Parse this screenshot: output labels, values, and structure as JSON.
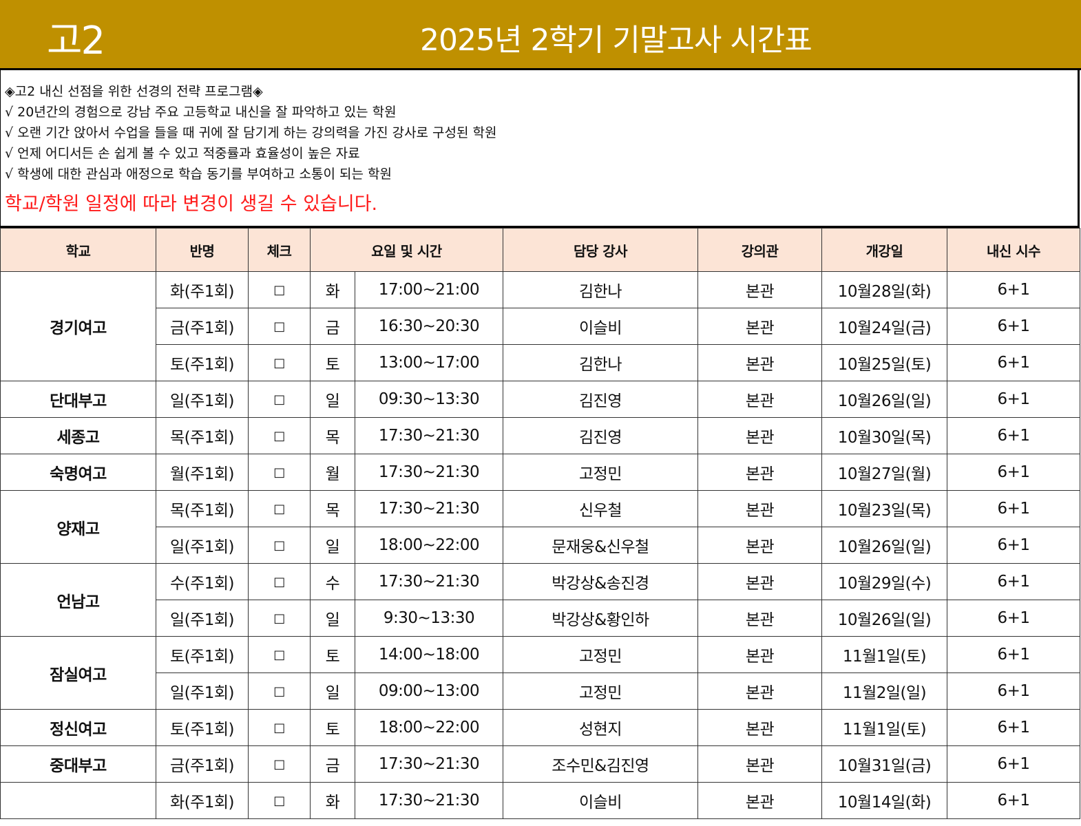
{
  "header": {
    "grade": "고2",
    "title": "2025년 2학기 기말고사 시간표",
    "bg_color": "#BF9000"
  },
  "intro": {
    "lines": [
      "◈고2 내신 선점을 위한 선경의 전략 프로그램◈",
      "√ 20년간의 경험으로 강남 주요 고등학교 내신을 잘 파악하고 있는 학원",
      "√ 오랜 기간 앉아서 수업을 들을 때 귀에 잘 담기게 하는 강의력을 가진 강사로 구성된 학원",
      "√ 언제 어디서든 손 쉽게 볼 수 있고 적중률과 효율성이 높은 자료",
      "√ 학생에 대한 관심과 애정으로 학습 동기를 부여하고 소통이 되는 학원"
    ],
    "notice": "학교/학원 일정에 따라 변경이 생길 수 있습니다."
  },
  "table": {
    "headers": [
      "학교",
      "반명",
      "체크",
      "요일 및 시간",
      "담당 강사",
      "강의관",
      "개강일",
      "내신 시수"
    ],
    "header_color": "#FCE4D6",
    "schools": [
      {
        "name": "경기여고",
        "rows": [
          {
            "class": "화(주1회)",
            "check": "□",
            "day": "화",
            "time": "17:00~21:00",
            "teacher": "김한나",
            "hall": "본관",
            "start": "10월28일(화)",
            "hours": "6+1"
          },
          {
            "class": "금(주1회)",
            "check": "□",
            "day": "금",
            "time": "16:30~20:30",
            "teacher": "이슬비",
            "hall": "본관",
            "start": "10월24일(금)",
            "hours": "6+1"
          },
          {
            "class": "토(주1회)",
            "check": "□",
            "day": "토",
            "time": "13:00~17:00",
            "teacher": "김한나",
            "hall": "본관",
            "start": "10월25일(토)",
            "hours": "6+1"
          }
        ]
      },
      {
        "name": "단대부고",
        "rows": [
          {
            "class": "일(주1회)",
            "check": "□",
            "day": "일",
            "time": "09:30~13:30",
            "teacher": "김진영",
            "hall": "본관",
            "start": "10월26일(일)",
            "hours": "6+1"
          }
        ]
      },
      {
        "name": "세종고",
        "rows": [
          {
            "class": "목(주1회)",
            "check": "□",
            "day": "목",
            "time": "17:30~21:30",
            "teacher": "김진영",
            "hall": "본관",
            "start": "10월30일(목)",
            "hours": "6+1"
          }
        ]
      },
      {
        "name": "숙명여고",
        "rows": [
          {
            "class": "월(주1회)",
            "check": "□",
            "day": "월",
            "time": "17:30~21:30",
            "teacher": "고정민",
            "hall": "본관",
            "start": "10월27일(월)",
            "hours": "6+1"
          }
        ]
      },
      {
        "name": "양재고",
        "rows": [
          {
            "class": "목(주1회)",
            "check": "□",
            "day": "목",
            "time": "17:30~21:30",
            "teacher": "신우철",
            "hall": "본관",
            "start": "10월23일(목)",
            "hours": "6+1"
          },
          {
            "class": "일(주1회)",
            "check": "□",
            "day": "일",
            "time": "18:00~22:00",
            "teacher": "문재웅&신우철",
            "hall": "본관",
            "start": "10월26일(일)",
            "hours": "6+1"
          }
        ]
      },
      {
        "name": "언남고",
        "rows": [
          {
            "class": "수(주1회)",
            "check": "□",
            "day": "수",
            "time": "17:30~21:30",
            "teacher": "박강상&송진경",
            "hall": "본관",
            "start": "10월29일(수)",
            "hours": "6+1"
          },
          {
            "class": "일(주1회)",
            "check": "□",
            "day": "일",
            "time": "9:30~13:30",
            "teacher": "박강상&황인하",
            "hall": "본관",
            "start": "10월26일(일)",
            "hours": "6+1"
          }
        ]
      },
      {
        "name": "잠실여고",
        "rows": [
          {
            "class": "토(주1회)",
            "check": "□",
            "day": "토",
            "time": "14:00~18:00",
            "teacher": "고정민",
            "hall": "본관",
            "start": "11월1일(토)",
            "hours": "6+1"
          },
          {
            "class": "일(주1회)",
            "check": "□",
            "day": "일",
            "time": "09:00~13:00",
            "teacher": "고정민",
            "hall": "본관",
            "start": "11월2일(일)",
            "hours": "6+1"
          }
        ]
      },
      {
        "name": "정신여고",
        "rows": [
          {
            "class": "토(주1회)",
            "check": "□",
            "day": "토",
            "time": "18:00~22:00",
            "teacher": "성현지",
            "hall": "본관",
            "start": "11월1일(토)",
            "hours": "6+1"
          }
        ]
      },
      {
        "name": "중대부고",
        "rows": [
          {
            "class": "금(주1회)",
            "check": "□",
            "day": "금",
            "time": "17:30~21:30",
            "teacher": "조수민&김진영",
            "hall": "본관",
            "start": "10월31일(금)",
            "hours": "6+1"
          }
        ]
      },
      {
        "name": "",
        "rows": [
          {
            "class": "화(주1회)",
            "check": "□",
            "day": "화",
            "time": "17:30~21:30",
            "teacher": "이슬비",
            "hall": "본관",
            "start": "10월14일(화)",
            "hours": "6+1"
          }
        ]
      }
    ]
  }
}
